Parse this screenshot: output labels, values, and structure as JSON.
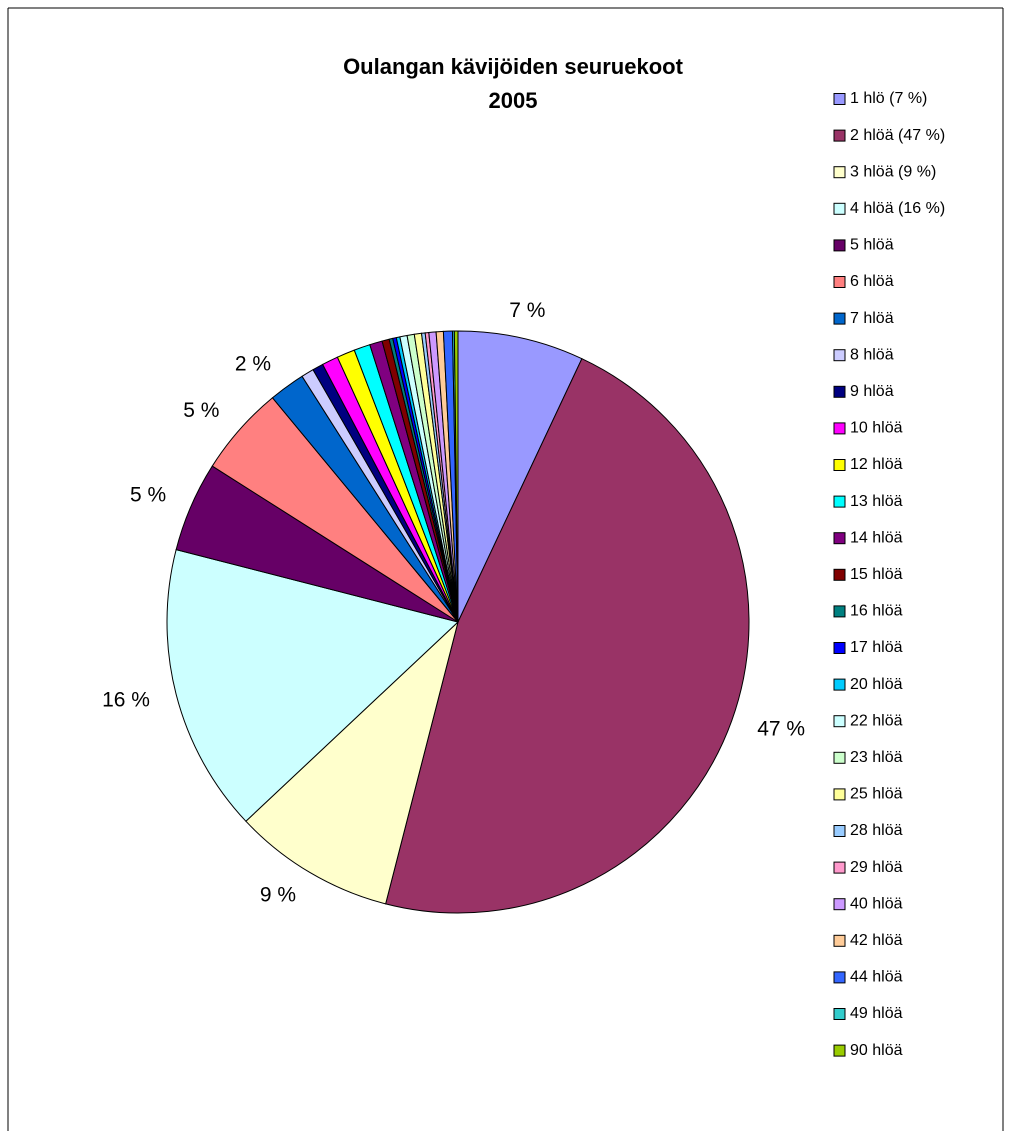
{
  "chart_data": {
    "type": "pie",
    "title": "Oulangan kävijöiden seuruekoot",
    "subtitle": "2005",
    "categories": [
      "1 hlö (7 %)",
      "2 hlöä (47 %)",
      "3 hlöä (9 %)",
      "4 hlöä (16 %)",
      "5 hlöä",
      "6 hlöä",
      "7 hlöä",
      "8 hlöä",
      "9 hlöä",
      "10 hlöä",
      "12 hlöä",
      "13 hlöä",
      "14 hlöä",
      "15 hlöä",
      "16 hlöä",
      "17 hlöä",
      "20 hlöä",
      "22 hlöä",
      "23 hlöä",
      "25 hlöä",
      "28 hlöä",
      "29 hlöä",
      "40 hlöä",
      "42 hlöä",
      "44 hlöä",
      "49 hlöä",
      "90 hlöä"
    ],
    "values": [
      7,
      47,
      9,
      16,
      5,
      5,
      2,
      0.7,
      0.6,
      0.9,
      1,
      0.9,
      0.7,
      0.4,
      0.2,
      0.2,
      0.2,
      0.4,
      0.4,
      0.4,
      0.2,
      0.2,
      0.4,
      0.4,
      0.5,
      0.1,
      0.2
    ],
    "value_labels": [
      "7 %",
      "47 %",
      "9 %",
      "16 %",
      "5 %",
      "5 %",
      "2 %",
      null,
      null,
      null,
      null,
      null,
      null,
      null,
      null,
      null,
      null,
      null,
      null,
      null,
      null,
      null,
      null,
      null,
      null,
      null,
      null
    ],
    "colors": [
      "#9999ff",
      "#993366",
      "#ffffcc",
      "#ccffff",
      "#660066",
      "#ff8080",
      "#0066cc",
      "#ccccff",
      "#000080",
      "#ff00ff",
      "#ffff00",
      "#00ffff",
      "#800080",
      "#800000",
      "#008080",
      "#0000ff",
      "#00ccff",
      "#ccffff",
      "#ccffcc",
      "#ffff99",
      "#99ccff",
      "#ff99cc",
      "#cc99ff",
      "#ffcc99",
      "#3366ff",
      "#33cccc",
      "#99cc00"
    ],
    "legend": "right"
  }
}
